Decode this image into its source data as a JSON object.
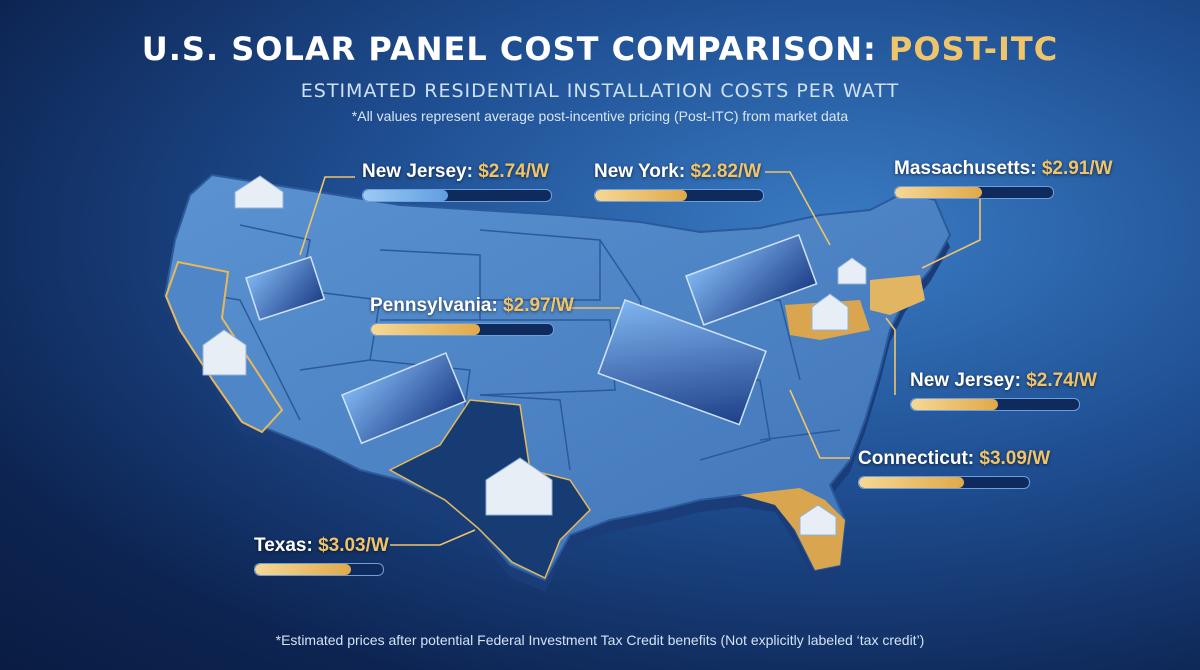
{
  "header": {
    "title_main": "U.S. SOLAR PANEL COST COMPARISON: ",
    "title_accent": "POST-ITC",
    "subtitle": "ESTIMATED RESIDENTIAL INSTALLATION COSTS PER WATT",
    "note": "*All values represent average post-incentive pricing (Post-ITC) from market data"
  },
  "callouts": [
    {
      "state": "New Jersey:",
      "value": "$2.74/W",
      "fill": 0.45,
      "style": "blue"
    },
    {
      "state": "New York:",
      "value": "$2.82/W",
      "fill": 0.55,
      "style": "gold"
    },
    {
      "state": "Massachusetts:",
      "value": "$2.91/W",
      "fill": 0.55,
      "style": "gold"
    },
    {
      "state": "Pennsylvania:",
      "value": "$2.97/W",
      "fill": 0.6,
      "style": "gold"
    },
    {
      "state": "New Jersey:",
      "value": "$2.74/W",
      "fill": 0.52,
      "style": "gold"
    },
    {
      "state": "Connecticut:",
      "value": "$3.09/W",
      "fill": 0.62,
      "style": "gold"
    },
    {
      "state": "Texas:",
      "value": "$3.03/W",
      "fill": 0.75,
      "style": "gold"
    }
  ],
  "colors": {
    "accent": "#f0c46a",
    "background": "#1f4f93",
    "map": "#4f86c8"
  },
  "footer": "*Estimated prices after potential Federal Investment Tax Credit benefits (Not explicitly labeled ‘tax credit’)"
}
